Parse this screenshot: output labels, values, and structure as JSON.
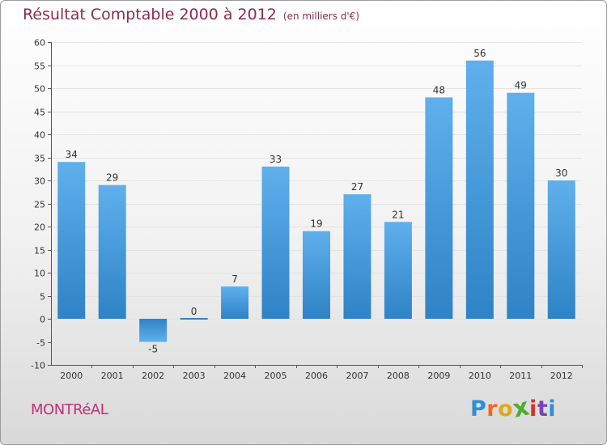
{
  "title": "Résultat Comptable 2000 à 2012",
  "subtitle": "(en milliers d'€)",
  "city": "MONTRéAL",
  "logo": {
    "letters": [
      "P",
      "r",
      "o",
      "x",
      "i",
      "t",
      "i"
    ],
    "colors": [
      "#2e8fd6",
      "#ef6a1f",
      "#e0a817",
      "#4caf2e",
      "#d8322c",
      "#7a43b6",
      "#2e8fd6"
    ]
  },
  "colors": {
    "title": "#8c2a52",
    "bar_light": "#5fb0ec",
    "bar_dark": "#2e83c6",
    "grid": "#e3e3e3"
  },
  "chart_data": {
    "type": "bar",
    "title": "Résultat Comptable 2000 à 2012",
    "subtitle": "(en milliers d'€)",
    "xlabel": "",
    "ylabel": "",
    "categories": [
      "2000",
      "2001",
      "2002",
      "2003",
      "2004",
      "2005",
      "2006",
      "2007",
      "2008",
      "2009",
      "2010",
      "2011",
      "2012"
    ],
    "values": [
      34,
      29,
      -5,
      0,
      7,
      33,
      19,
      27,
      21,
      48,
      56,
      49,
      30
    ],
    "ylim": [
      -10,
      60
    ],
    "yticks": [
      -10,
      -5,
      0,
      5,
      10,
      15,
      20,
      25,
      30,
      35,
      40,
      45,
      50,
      55,
      60
    ],
    "grid": true
  }
}
